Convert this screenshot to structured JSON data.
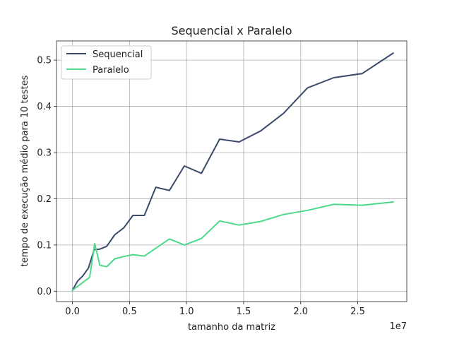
{
  "chart_data": {
    "type": "line",
    "title": "Sequencial x Paralelo",
    "xlabel": "tamanho da matriz",
    "ylabel": "tempo de execução médio para 10 testes",
    "x_offset_label": "1e7",
    "xlim": [
      -1400000,
      29300000
    ],
    "ylim": [
      -0.0225,
      0.5415
    ],
    "x_ticks": [
      0,
      5000000,
      10000000,
      15000000,
      20000000,
      25000000
    ],
    "x_tick_labels": [
      "0.0",
      "0.5",
      "1.0",
      "1.5",
      "2.0",
      "2.5"
    ],
    "y_ticks": [
      0.0,
      0.1,
      0.2,
      0.3,
      0.4,
      0.5
    ],
    "y_tick_labels": [
      "0.0",
      "0.1",
      "0.2",
      "0.3",
      "0.4",
      "0.5"
    ],
    "grid": true,
    "legend_position": "top-left",
    "series": [
      {
        "name": "Sequencial",
        "color": "#3b4a6b",
        "x": [
          0,
          450000,
          900000,
          1400000,
          1900000,
          2400000,
          3000000,
          3700000,
          4500000,
          5300000,
          6300000,
          7300000,
          8500000,
          9800000,
          11300000,
          12900000,
          14600000,
          16500000,
          18500000,
          20600000,
          22900000,
          25400000,
          28100000
        ],
        "y": [
          0.002,
          0.022,
          0.033,
          0.05,
          0.09,
          0.091,
          0.097,
          0.122,
          0.137,
          0.164,
          0.164,
          0.225,
          0.218,
          0.271,
          0.255,
          0.329,
          0.323,
          0.347,
          0.385,
          0.44,
          0.462,
          0.471,
          0.515
        ]
      },
      {
        "name": "Paralelo",
        "color": "#4cd98c",
        "x": [
          0,
          1500000,
          1950000,
          2400000,
          3000000,
          3700000,
          4500000,
          5300000,
          6300000,
          7300000,
          8500000,
          9800000,
          11300000,
          12900000,
          14600000,
          16500000,
          18500000,
          20600000,
          22900000,
          25400000,
          28100000
        ],
        "y": [
          0.002,
          0.03,
          0.103,
          0.056,
          0.053,
          0.07,
          0.075,
          0.079,
          0.076,
          0.093,
          0.113,
          0.1,
          0.114,
          0.152,
          0.143,
          0.151,
          0.166,
          0.175,
          0.188,
          0.186,
          0.193
        ]
      }
    ]
  }
}
